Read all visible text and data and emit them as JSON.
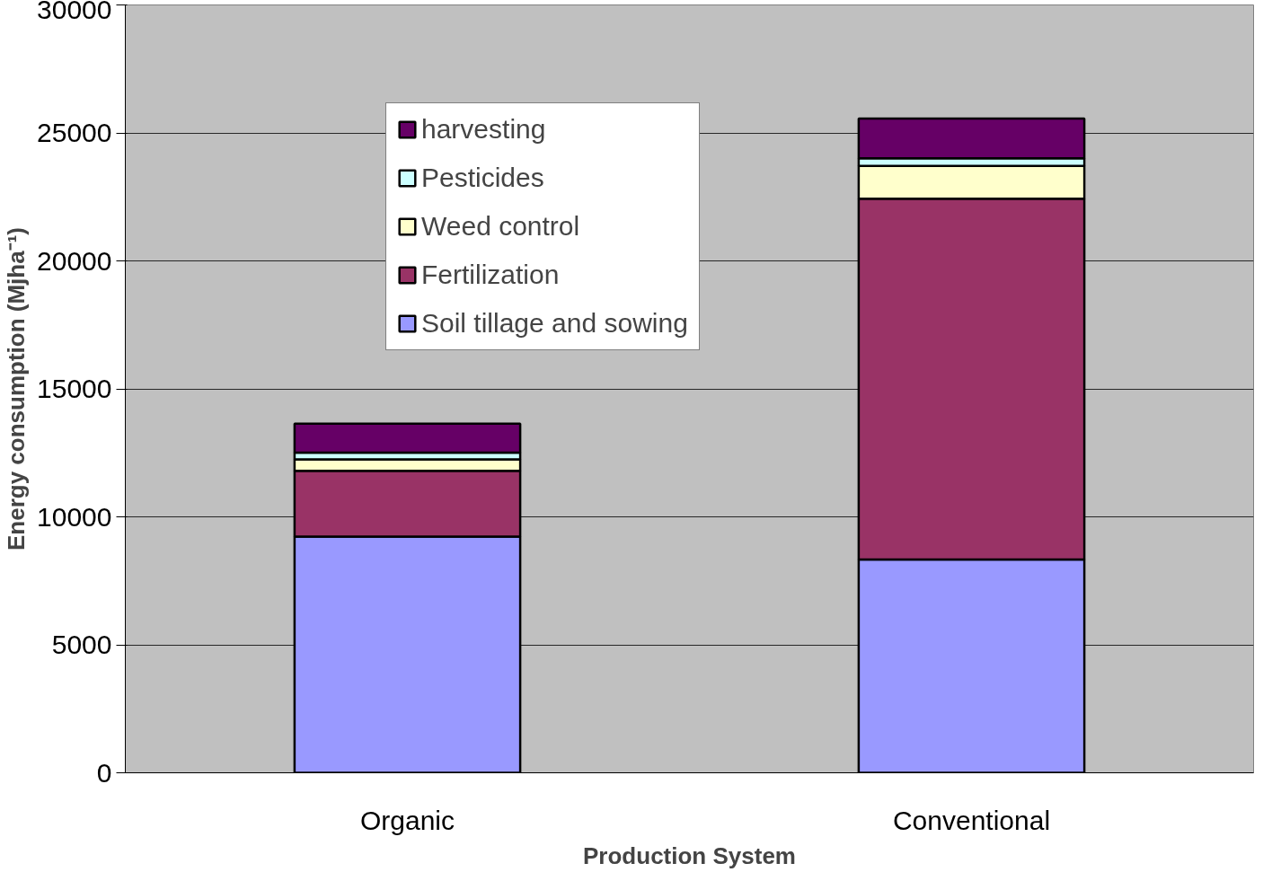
{
  "chart_data": {
    "type": "bar",
    "stacked": true,
    "xlabel": "Production System",
    "ylabel": "Energy consumption (Mjha⁻¹)",
    "categories": [
      "Organic",
      "Conventional"
    ],
    "series": [
      {
        "name": "Soil tillage and sowing",
        "color": "#9999ff",
        "values": [
          9230,
          8330
        ]
      },
      {
        "name": "Fertilization",
        "color": "#993366",
        "values": [
          2570,
          14100
        ]
      },
      {
        "name": "Weed control",
        "color": "#ffffcc",
        "values": [
          450,
          1280
        ]
      },
      {
        "name": "Pesticides",
        "color": "#ccffff",
        "values": [
          260,
          300
        ]
      },
      {
        "name": "harvesting",
        "color": "#660066",
        "values": [
          1130,
          1550
        ]
      }
    ],
    "ylim": [
      0,
      30000
    ],
    "yticks": [
      0,
      5000,
      10000,
      15000,
      20000,
      25000,
      30000
    ],
    "grid": "y",
    "legend": "top left"
  }
}
